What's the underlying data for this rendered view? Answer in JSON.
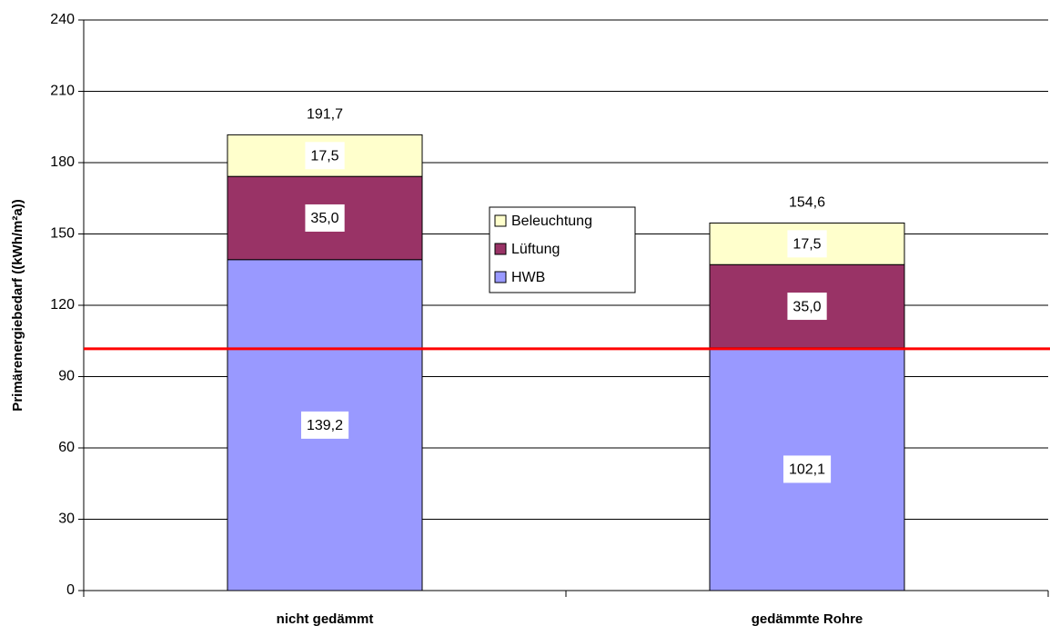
{
  "chart_data": {
    "type": "stacked_bar",
    "y_label": "Primärenergiebedarf ((kWh/m²a))",
    "categories": [
      "nicht gedämmt",
      "gedämmte Rohre"
    ],
    "series": [
      {
        "name": "HWB",
        "color": "#9999ff",
        "values": [
          139.2,
          102.1
        ],
        "value_labels": [
          "139,2",
          "102,1"
        ]
      },
      {
        "name": "Lüftung",
        "color": "#993366",
        "values": [
          35.0,
          35.0
        ],
        "value_labels": [
          "35,0",
          "35,0"
        ]
      },
      {
        "name": "Beleuchtung",
        "color": "#ffffcc",
        "values": [
          17.5,
          17.5
        ],
        "value_labels": [
          "17,5",
          "17,5"
        ]
      }
    ],
    "totals": [
      191.7,
      154.6
    ],
    "total_labels": [
      "191,7",
      "154,6"
    ],
    "reference_line": {
      "value": 101.7,
      "color": "#ff0000"
    },
    "ylim": [
      0,
      240
    ],
    "yticks": [
      0,
      30,
      60,
      90,
      120,
      150,
      180,
      210,
      240
    ],
    "grid": true,
    "legend": "center"
  }
}
